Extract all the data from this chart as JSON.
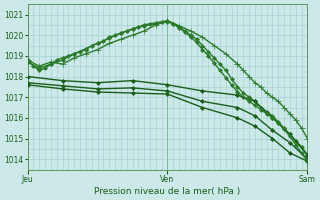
{
  "title": "",
  "xlabel": "Pression niveau de la mer( hPa )",
  "background_color": "#cce8e8",
  "grid_color": "#9ecece",
  "line_color": "#1a5e1a",
  "ylim": [
    1013.5,
    1021.5
  ],
  "yticks": [
    1014,
    1015,
    1016,
    1017,
    1018,
    1019,
    1020,
    1021
  ],
  "xlim": [
    0,
    48
  ],
  "day_positions": [
    0,
    24,
    48
  ],
  "day_labels": [
    "Jeu",
    "Ven",
    "Sam"
  ],
  "series": [
    {
      "x": [
        0,
        2,
        4,
        6,
        8,
        10,
        12,
        14,
        16,
        18,
        20,
        22,
        24,
        26,
        28,
        30,
        32,
        34,
        36
      ],
      "y": [
        1018.8,
        1018.5,
        1018.7,
        1018.6,
        1018.9,
        1019.1,
        1019.3,
        1019.6,
        1019.8,
        1020.0,
        1020.2,
        1020.5,
        1020.7,
        1020.45,
        1020.2,
        1019.9,
        1019.5,
        1019.1,
        1018.6
      ],
      "x2": [
        36,
        37,
        38,
        39,
        40,
        41,
        42,
        43,
        44,
        45,
        46,
        47,
        48
      ],
      "y2": [
        1018.6,
        1018.3,
        1018.0,
        1017.7,
        1017.5,
        1017.2,
        1017.0,
        1016.8,
        1016.5,
        1016.2,
        1015.9,
        1015.5,
        1015.0
      ],
      "marker": "+",
      "markersize": 4,
      "linewidth": 1.0,
      "color": "#2a7a2a"
    },
    {
      "x": [
        0,
        1,
        2,
        3,
        4,
        5,
        6,
        7,
        8,
        9,
        10,
        11,
        12,
        13,
        14,
        15,
        16,
        17,
        18,
        19,
        20,
        21,
        22,
        23,
        24,
        25,
        26,
        27,
        28,
        29,
        30,
        31,
        32,
        33,
        34,
        35,
        36,
        37,
        38,
        39,
        40,
        41,
        42,
        43,
        44,
        45,
        46,
        47,
        48
      ],
      "y": [
        1018.8,
        1018.5,
        1018.3,
        1018.4,
        1018.6,
        1018.8,
        1018.9,
        1019.0,
        1019.1,
        1019.2,
        1019.3,
        1019.5,
        1019.6,
        1019.7,
        1019.9,
        1020.0,
        1020.1,
        1020.2,
        1020.3,
        1020.4,
        1020.5,
        1020.55,
        1020.6,
        1020.65,
        1020.7,
        1020.55,
        1020.4,
        1020.2,
        1020.0,
        1019.8,
        1019.5,
        1019.2,
        1018.9,
        1018.6,
        1018.3,
        1017.9,
        1017.5,
        1017.2,
        1017.0,
        1016.8,
        1016.5,
        1016.3,
        1016.1,
        1015.8,
        1015.5,
        1015.2,
        1014.9,
        1014.6,
        1014.2
      ],
      "marker": "D",
      "markersize": 2,
      "linewidth": 1.0,
      "color": "#2a7a2a"
    },
    {
      "x": [
        0,
        6,
        12,
        18,
        24,
        30,
        36,
        39,
        42,
        45,
        48
      ],
      "y": [
        1018.0,
        1017.8,
        1017.7,
        1017.8,
        1017.6,
        1017.3,
        1017.1,
        1016.8,
        1016.0,
        1015.2,
        1014.2
      ],
      "marker": "D",
      "markersize": 2,
      "linewidth": 1.0,
      "color": "#1a5e1a"
    },
    {
      "x": [
        0,
        6,
        12,
        18,
        24,
        30,
        36,
        39,
        42,
        45,
        48
      ],
      "y": [
        1017.7,
        1017.55,
        1017.4,
        1017.45,
        1017.3,
        1016.8,
        1016.5,
        1016.1,
        1015.4,
        1014.8,
        1014.0
      ],
      "marker": "D",
      "markersize": 2,
      "linewidth": 1.0,
      "color": "#1a5e1a"
    },
    {
      "x": [
        0,
        6,
        12,
        18,
        24,
        30,
        36,
        39,
        42,
        45,
        48
      ],
      "y": [
        1017.6,
        1017.4,
        1017.25,
        1017.2,
        1017.15,
        1016.5,
        1016.0,
        1015.6,
        1015.0,
        1014.3,
        1013.9
      ],
      "marker": "D",
      "markersize": 2,
      "linewidth": 1.0,
      "color": "#1a5e1a"
    },
    {
      "x": [
        0,
        2,
        4,
        6,
        8,
        10,
        12,
        14,
        16,
        18,
        20,
        22,
        24,
        25,
        26,
        27,
        28,
        29,
        30,
        31,
        32,
        33,
        34,
        35,
        36,
        37,
        38,
        39,
        40,
        41,
        42,
        43,
        44,
        45,
        46,
        47,
        48
      ],
      "y": [
        1018.7,
        1018.4,
        1018.6,
        1018.8,
        1019.1,
        1019.35,
        1019.6,
        1019.85,
        1020.1,
        1020.3,
        1020.45,
        1020.55,
        1020.65,
        1020.55,
        1020.35,
        1020.15,
        1019.9,
        1019.65,
        1019.3,
        1019.0,
        1018.65,
        1018.3,
        1017.95,
        1017.6,
        1017.25,
        1017.0,
        1016.8,
        1016.6,
        1016.4,
        1016.2,
        1016.0,
        1015.75,
        1015.45,
        1015.1,
        1014.7,
        1014.3,
        1013.9
      ],
      "marker": "D",
      "markersize": 2,
      "linewidth": 1.0,
      "color": "#2a7a2a"
    }
  ]
}
